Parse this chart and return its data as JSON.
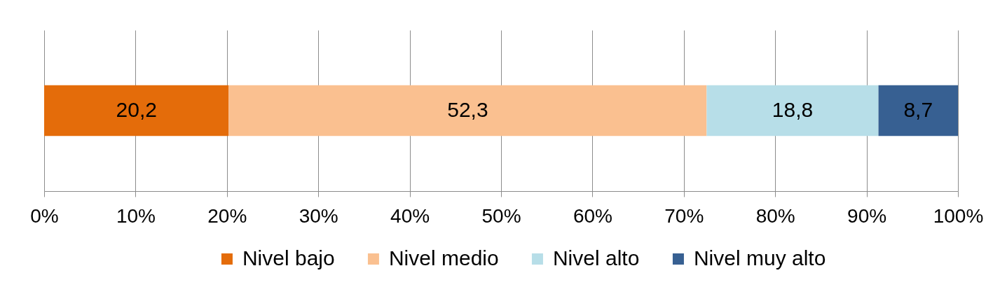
{
  "chart_data": {
    "type": "bar",
    "orientation": "horizontal",
    "stacked": true,
    "categories": [
      null
    ],
    "series": [
      {
        "name": "Nivel bajo",
        "color": "#e46c0a",
        "values": [
          20.2
        ],
        "value_labels": [
          "20,2"
        ]
      },
      {
        "name": "Nivel medio",
        "color": "#fac090",
        "values": [
          52.3
        ],
        "value_labels": [
          "52,3"
        ]
      },
      {
        "name": "Nivel alto",
        "color": "#b7dee8",
        "values": [
          18.8
        ],
        "value_labels": [
          "18,8"
        ]
      },
      {
        "name": "Nivel muy alto",
        "color": "#376092",
        "values": [
          8.7
        ],
        "value_labels": [
          "8,7"
        ]
      }
    ],
    "xlim": [
      0,
      100
    ],
    "xticks": [
      {
        "value": 0,
        "label": "0%"
      },
      {
        "value": 10,
        "label": "10%"
      },
      {
        "value": 20,
        "label": "20%"
      },
      {
        "value": 30,
        "label": "30%"
      },
      {
        "value": 40,
        "label": "40%"
      },
      {
        "value": 50,
        "label": "50%"
      },
      {
        "value": 60,
        "label": "60%"
      },
      {
        "value": 70,
        "label": "70%"
      },
      {
        "value": 80,
        "label": "80%"
      },
      {
        "value": 90,
        "label": "90%"
      },
      {
        "value": 100,
        "label": "100%"
      }
    ],
    "grid": "x",
    "legend": "bottom",
    "tick_labels": "x"
  }
}
